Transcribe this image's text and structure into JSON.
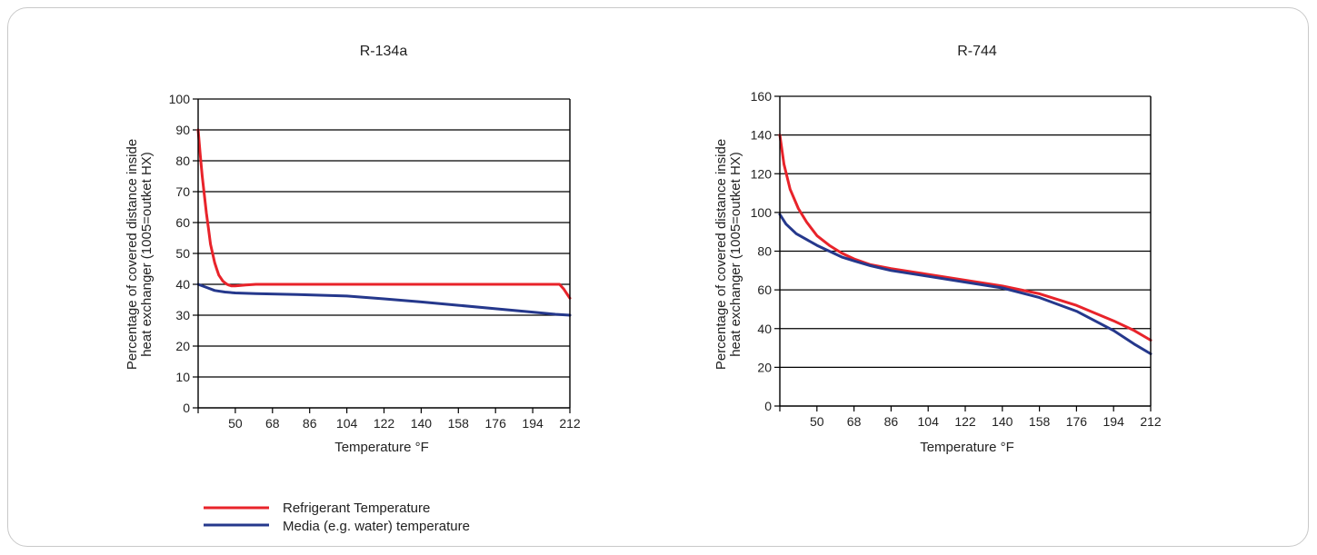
{
  "colors": {
    "refrigerant": "#e8232a",
    "media": "#25388c",
    "axis": "#000000",
    "panel_border": "#c9c9c9"
  },
  "legend": {
    "items": [
      {
        "label": "Refrigerant Temperature",
        "color": "#e8232a"
      },
      {
        "label": "Media (e.g. water) temperature",
        "color": "#25388c"
      }
    ]
  },
  "chart_data": [
    {
      "type": "line",
      "title": "R-134a",
      "xlabel": "Temperature  °F",
      "ylabel_lines": [
        "Percentage of covered distance inside",
        "heat exchanger (1005=outket HX)"
      ],
      "xlim": [
        32,
        212
      ],
      "ylim": [
        0,
        100
      ],
      "x_ticks": [
        50,
        68,
        86,
        104,
        122,
        140,
        158,
        176,
        194,
        212
      ],
      "y_ticks": [
        0,
        10,
        20,
        30,
        40,
        50,
        60,
        70,
        80,
        90,
        100
      ],
      "grid": "horizontal",
      "series": [
        {
          "name": "Refrigerant Temperature",
          "color": "#e8232a",
          "x": [
            32,
            33,
            34,
            35,
            36,
            37,
            38,
            39,
            40,
            41,
            42,
            43,
            44,
            45,
            46,
            47,
            48,
            50,
            52,
            55,
            60,
            70,
            100,
            150,
            200,
            207,
            209,
            211,
            212
          ],
          "y": [
            90,
            82,
            75,
            69,
            63,
            58,
            53,
            50,
            47,
            45,
            43,
            42,
            41,
            40.5,
            40,
            39.7,
            39.5,
            39.5,
            39.6,
            39.8,
            40,
            40,
            40,
            40,
            40,
            40,
            38.5,
            36.5,
            35.5
          ]
        },
        {
          "name": "Media (e.g. water) temperature",
          "color": "#25388c",
          "x": [
            32,
            36,
            40,
            45,
            50,
            60,
            80,
            104,
            122,
            140,
            158,
            176,
            194,
            205,
            212
          ],
          "y": [
            40,
            39,
            38,
            37.5,
            37.2,
            37,
            36.7,
            36.2,
            35.3,
            34.3,
            33.2,
            32.1,
            31,
            30.3,
            30
          ]
        }
      ]
    },
    {
      "type": "line",
      "title": "R-744",
      "xlabel": "Temperature °F",
      "ylabel_lines": [
        "Percentage of covered distance inside",
        "heat exchanger (1005=outket HX)"
      ],
      "xlim": [
        32,
        212
      ],
      "ylim": [
        0,
        160
      ],
      "x_ticks": [
        50,
        68,
        86,
        104,
        122,
        140,
        158,
        176,
        194,
        212
      ],
      "y_ticks": [
        0,
        20,
        40,
        60,
        80,
        100,
        120,
        140,
        160
      ],
      "grid": "horizontal",
      "series": [
        {
          "name": "Refrigerant Temperature",
          "color": "#e8232a",
          "x": [
            32,
            34,
            37,
            41,
            45,
            50,
            56,
            62,
            68,
            76,
            86,
            104,
            122,
            140,
            158,
            176,
            194,
            204,
            212
          ],
          "y": [
            140,
            125,
            112,
            102,
            95,
            88,
            83,
            79,
            76,
            73,
            71,
            68,
            65,
            62,
            58,
            52,
            44,
            39,
            34
          ]
        },
        {
          "name": "Media (e.g. water) temperature",
          "color": "#25388c",
          "x": [
            32,
            35,
            40,
            45,
            50,
            56,
            62,
            68,
            76,
            86,
            104,
            122,
            140,
            158,
            176,
            194,
            204,
            212
          ],
          "y": [
            99,
            94,
            89,
            86,
            83,
            80,
            77,
            75,
            72.5,
            70,
            67,
            64,
            61,
            56,
            49,
            39,
            32,
            27
          ]
        }
      ]
    }
  ]
}
